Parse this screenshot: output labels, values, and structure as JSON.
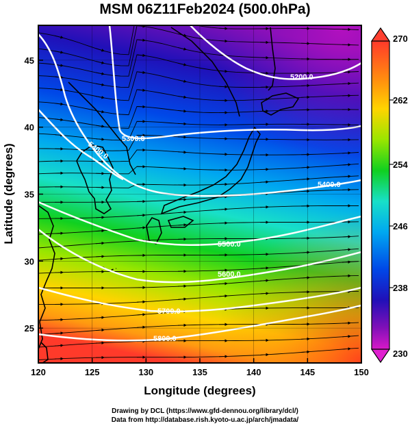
{
  "title": "MSM 06Z11Feb2024 (500.0hPa)",
  "credits": {
    "line1": "Drawing by DCL (https://www.gfd-dennou.org/library/dcl/)",
    "line2": "Data from http://database.rish.kyoto-u.ac.jp/arch/jmadata/"
  },
  "axes": {
    "xlabel": "Longitude (degrees)",
    "ylabel": "Latitude  (degrees)",
    "xlim": [
      120,
      150
    ],
    "ylim": [
      22.4,
      47.6
    ],
    "xticks": [
      "120",
      "125",
      "130",
      "135",
      "140",
      "145",
      "150"
    ],
    "yticks": [
      "25",
      "30",
      "35",
      "40",
      "45"
    ]
  },
  "colorbar": {
    "min": 230,
    "max": 270,
    "labels": [
      "270",
      "262",
      "254",
      "246",
      "238",
      "230"
    ],
    "colors": [
      "#ff3a2a",
      "#ff9a10",
      "#ffd400",
      "#9ae600",
      "#10d020",
      "#18e0c8",
      "#00a8f0",
      "#0048e8",
      "#2010b8",
      "#8010b8",
      "#d818c8"
    ]
  },
  "contours": [
    {
      "label": "5200.0"
    },
    {
      "label": "5300.0"
    },
    {
      "label": "5400.0"
    },
    {
      "label": "5400.0"
    },
    {
      "label": "5500.0"
    },
    {
      "label": "5600.0"
    },
    {
      "label": "5700.0"
    },
    {
      "label": "5800.0"
    }
  ],
  "colors": {
    "contour": "#ffffff",
    "streamline": "#000000",
    "coastline": "#000000"
  }
}
